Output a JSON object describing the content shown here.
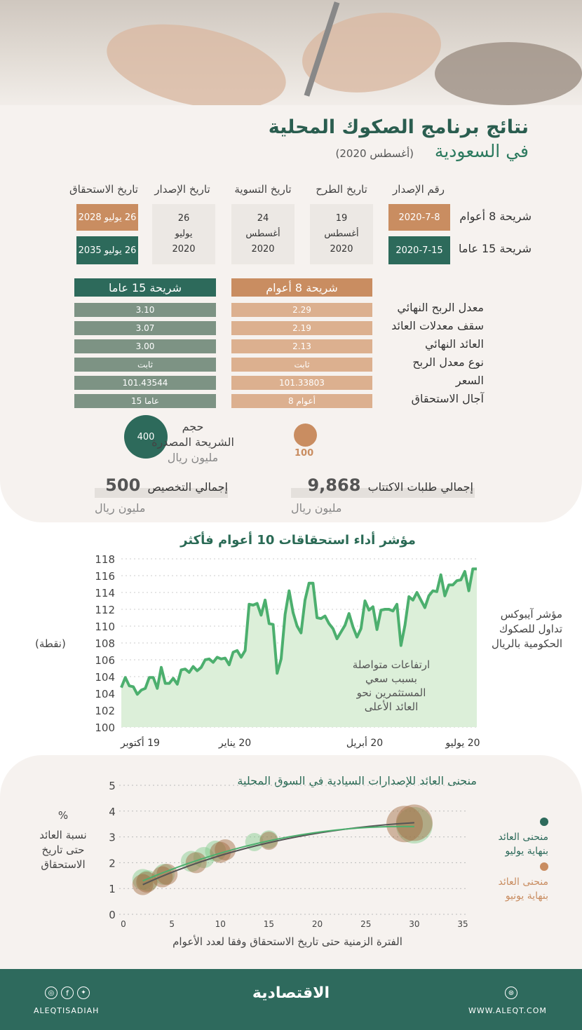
{
  "title": {
    "line1": "نتائج برنامج الصكوك المحلية",
    "line2": "في السعودية",
    "date": "(أغسطس 2020)"
  },
  "schedule": {
    "headers": [
      "رقم الإصدار",
      "تاريخ الطرح",
      "تاريخ التسوية",
      "تاريخ الإصدار",
      "تاريخ الاستحقاق"
    ],
    "rows": [
      {
        "label": "شريحة 8 أعوام",
        "issue_no": "2020-7-8",
        "maturity": "26 يوليو 2028"
      },
      {
        "label": "شريحة 15 عاما",
        "issue_no": "2020-7-15",
        "maturity": "26 يوليو 2035"
      }
    ],
    "offer_date": [
      "19",
      "أغسطس",
      "2020"
    ],
    "settlement_date": [
      "24",
      "أغسطس",
      "2020"
    ],
    "issue_date": [
      "26",
      "يوليو",
      "2020"
    ]
  },
  "terms": {
    "col_8": "شريحة 8 أعوام",
    "col_15": "شريحة 15 عاما",
    "rows": [
      {
        "label": "معدل الربح النهائي",
        "v8": "2.29",
        "v15": "3.10"
      },
      {
        "label": "سقف معدلات العائد",
        "v8": "2.19",
        "v15": "3.07"
      },
      {
        "label": "العائد النهائي",
        "v8": "2.13",
        "v15": "3.00"
      },
      {
        "label": "نوع معدل الربح",
        "v8": "ثابت",
        "v15": "ثابت"
      },
      {
        "label": "السعر",
        "v8": "101.33803",
        "v15": "101.43544"
      },
      {
        "label": "آجال الاستحقاق",
        "v8": "8 أعوام",
        "v15": "15 عاما"
      }
    ]
  },
  "size": {
    "label1": "حجم",
    "label2": "الشريحة المصدرة",
    "unit": "مليون ريال",
    "v15": "400",
    "v8": "100"
  },
  "totals": {
    "allocation_label": "إجمالي التخصيص",
    "allocation": "500",
    "subscription_label": "إجمالي طلبات الاكتتاب",
    "subscription": "9,868",
    "unit": "مليون ريال"
  },
  "colors": {
    "green": "#2d6a5b",
    "orange": "#c98d61",
    "line": "#4caf6e"
  },
  "chart_data": [
    {
      "type": "area",
      "title": "مؤشر أداء استحقاقات 10 أعوام فأكثر",
      "ylabel": "(نقطة)",
      "series_label": [
        "مؤشر آيبوكس",
        "تداول للصكوك",
        "الحكومية بالريال"
      ],
      "annotation": [
        "ارتفاعات متواصلة",
        "بسبب سعي",
        "المستثمرين نحو",
        "العائد الأعلى"
      ],
      "y_ticks": [
        "118",
        "116",
        "114",
        "112",
        "110",
        "108",
        "106",
        "104",
        "104",
        "102",
        "100"
      ],
      "x_ticks": [
        "19 أكتوبر",
        "20 يناير",
        "20 أبريل",
        "20 يوليو"
      ],
      "ylim": [
        98,
        118
      ],
      "grid": true,
      "values": [
        102.7,
        103.9,
        102.9,
        102.8,
        101.9,
        102.4,
        102.6,
        103.9,
        103.9,
        102.6,
        105.1,
        103.2,
        103.2,
        103.8,
        103.1,
        104.8,
        104.9,
        104.5,
        105.2,
        104.7,
        105.1,
        106.0,
        106.1,
        105.7,
        106.3,
        106.1,
        106.2,
        105.4,
        106.9,
        107.1,
        106.3,
        107.1,
        112.6,
        112.5,
        112.7,
        111.3,
        113.1,
        110.3,
        110.2,
        104.4,
        106.1,
        111.4,
        114.2,
        111.6,
        110.0,
        109.2,
        113.1,
        115.1,
        115.1,
        111.0,
        110.9,
        111.2,
        110.3,
        109.7,
        108.5,
        109.3,
        110.1,
        111.5,
        109.9,
        108.7,
        109.7,
        113.0,
        111.9,
        112.3,
        109.6,
        111.9,
        112.0,
        112.0,
        111.8,
        112.6,
        107.7,
        110.1,
        113.5,
        113.1,
        114.0,
        113.1,
        112.2,
        113.6,
        114.2,
        114.1,
        116.1,
        113.6,
        114.9,
        114.9,
        115.4,
        115.5,
        116.5,
        114.2,
        116.8,
        116.8
      ]
    },
    {
      "type": "scatter",
      "title": "منحنى العائد للإصدارات السيادية في السوق المحلية",
      "ylabel": [
        "%",
        "نسبة العائد",
        "حتى تاريخ",
        "الاستحقاق"
      ],
      "xlabel": "الفترة الزمنية حتى تاريخ الاستحقاق  وفقا لعدد الأعوام",
      "xlim": [
        0,
        35
      ],
      "ylim": [
        0,
        5
      ],
      "x_ticks": [
        0,
        5,
        10,
        15,
        20,
        25,
        30,
        35
      ],
      "y_ticks": [
        0,
        1,
        2,
        3,
        4,
        5
      ],
      "grid": true,
      "legend": "right",
      "series": [
        {
          "name": "منحنى العائد بنهاية يوليو",
          "color": "#2d6a5b",
          "points": [
            [
              2,
              1.35
            ],
            [
              2.5,
              1.3
            ],
            [
              4.2,
              1.55
            ],
            [
              7,
              2.05
            ],
            [
              8.3,
              2.2
            ],
            [
              9.5,
              2.45
            ],
            [
              13.5,
              2.8
            ],
            [
              15,
              2.9
            ],
            [
              30,
              3.45
            ]
          ]
        },
        {
          "name": "منحنى العائد بنهاية يونيو",
          "color": "#c98d61",
          "points": [
            [
              2,
              1.15
            ],
            [
              2.4,
              1.25
            ],
            [
              4,
              1.45
            ],
            [
              4.5,
              1.55
            ],
            [
              7.5,
              2.0
            ],
            [
              10,
              2.4
            ],
            [
              10.5,
              2.5
            ],
            [
              15,
              2.85
            ],
            [
              29,
              3.5
            ],
            [
              30,
              3.55
            ]
          ]
        }
      ]
    }
  ],
  "footer": {
    "handle": "ALEQTISADIAH",
    "logo": "الاقتصادية",
    "website": "WWW.ALEQT.COM"
  }
}
